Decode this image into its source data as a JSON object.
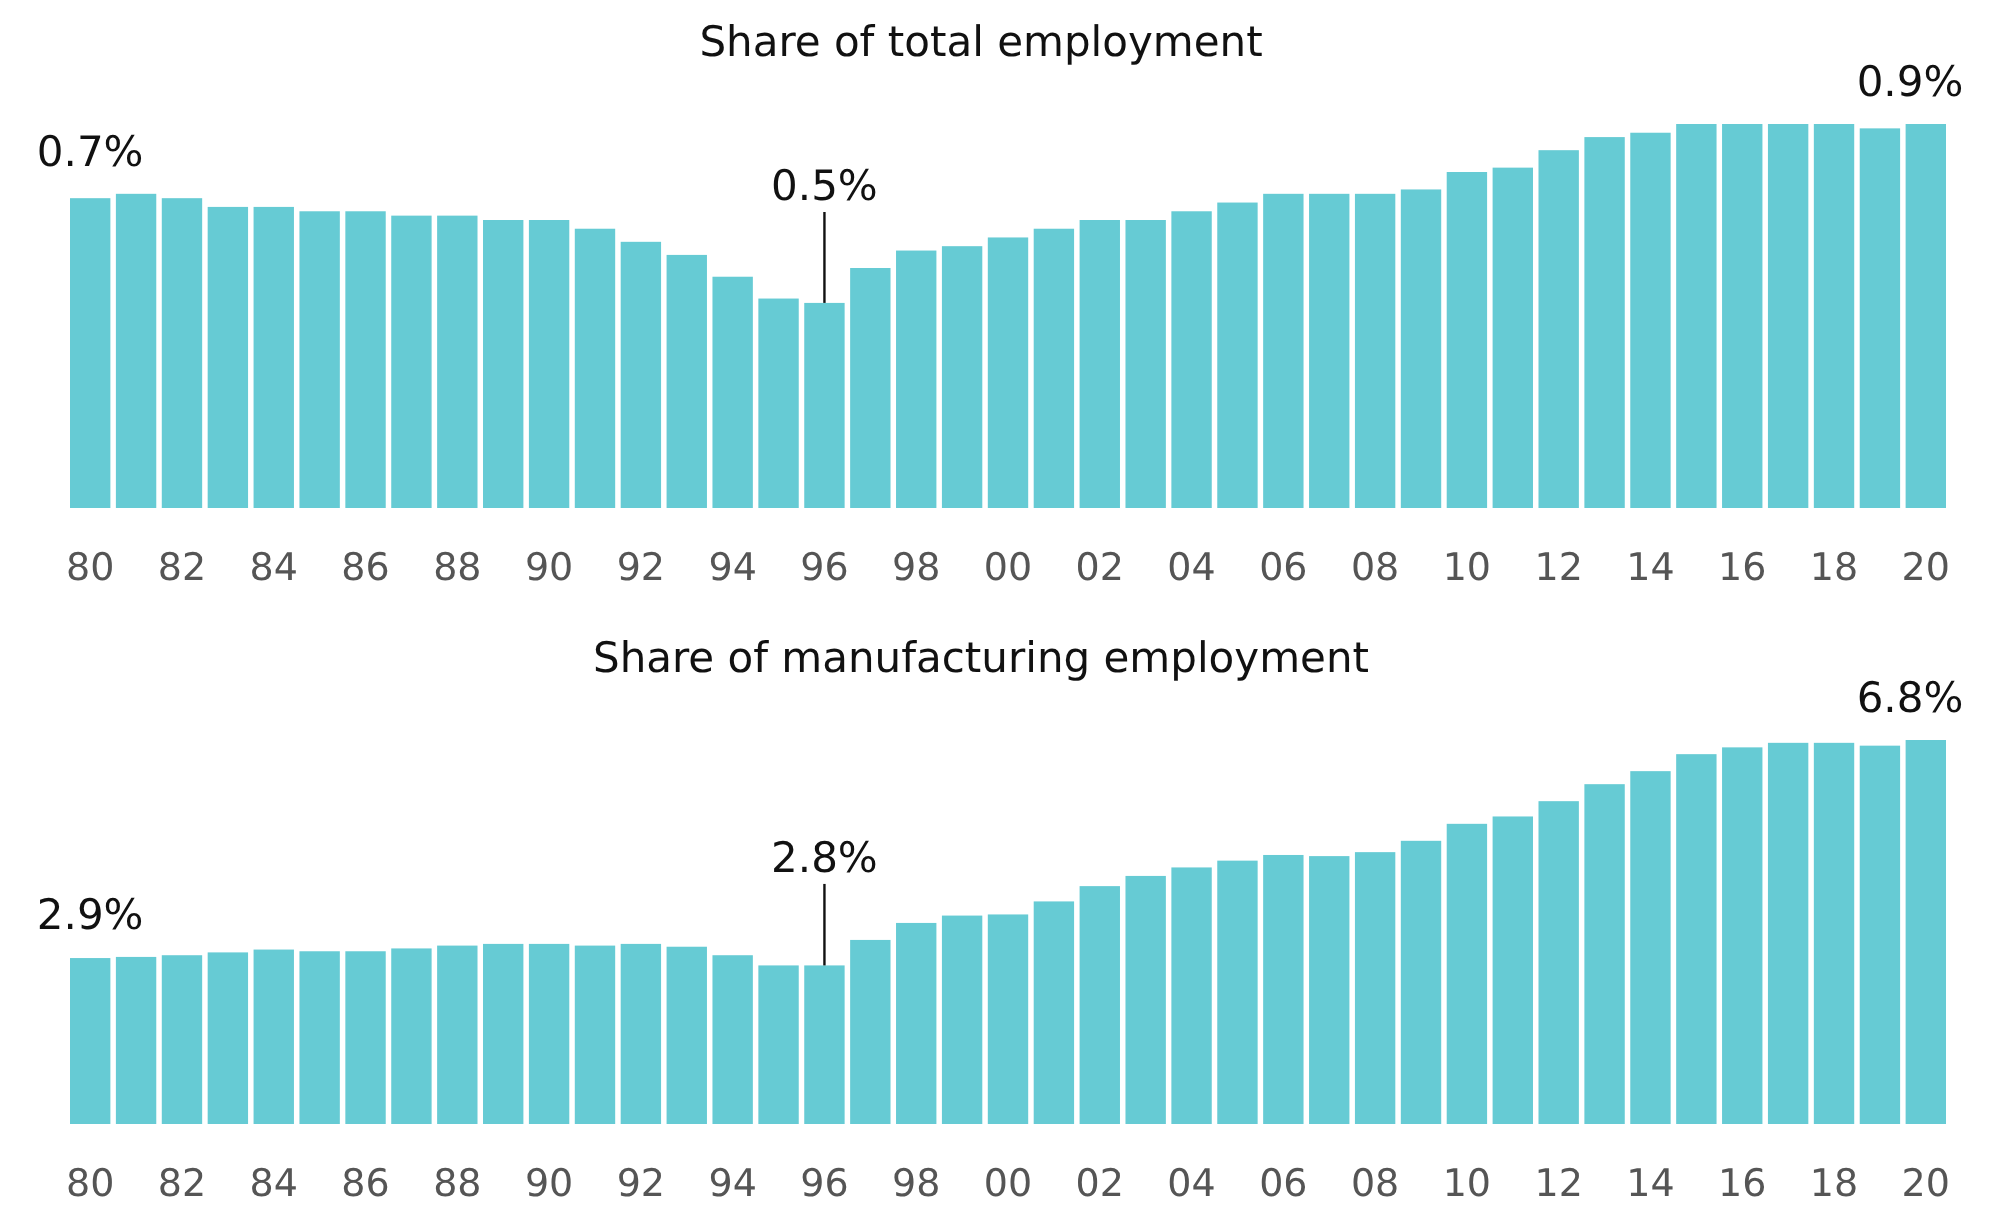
{
  "chart_data": [
    {
      "type": "bar",
      "title": "Share of total employment",
      "categories": [
        "80",
        null,
        "82",
        null,
        "84",
        null,
        "86",
        null,
        "88",
        null,
        "90",
        null,
        "92",
        null,
        "94",
        null,
        "96",
        null,
        "98",
        null,
        "00",
        null,
        "02",
        null,
        "04",
        null,
        "06",
        null,
        "08",
        null,
        "10",
        null,
        "12",
        null,
        "14",
        null,
        "16",
        null,
        "18",
        null,
        "20"
      ],
      "values": [
        0.71,
        0.72,
        0.71,
        0.69,
        0.69,
        0.68,
        0.68,
        0.67,
        0.67,
        0.66,
        0.66,
        0.64,
        0.61,
        0.58,
        0.53,
        0.48,
        0.47,
        0.55,
        0.59,
        0.6,
        0.62,
        0.64,
        0.66,
        0.66,
        0.68,
        0.7,
        0.72,
        0.72,
        0.72,
        0.73,
        0.77,
        0.78,
        0.82,
        0.85,
        0.86,
        0.88,
        0.88,
        0.88,
        0.88,
        0.87,
        0.88
      ],
      "value_labels": [
        "0.7%",
        null,
        null,
        null,
        null,
        null,
        null,
        null,
        null,
        null,
        null,
        null,
        null,
        null,
        null,
        null,
        "0.5%",
        null,
        null,
        null,
        null,
        null,
        null,
        null,
        null,
        null,
        null,
        null,
        null,
        null,
        null,
        null,
        null,
        null,
        null,
        null,
        null,
        null,
        null,
        null,
        "0.9%"
      ],
      "color": "#66cbd4",
      "grid": false
    },
    {
      "type": "bar",
      "title": "Share of manufacturing employment",
      "categories": [
        "80",
        null,
        "82",
        null,
        "84",
        null,
        "86",
        null,
        "88",
        null,
        "90",
        null,
        "92",
        null,
        "94",
        null,
        "96",
        null,
        "98",
        null,
        "00",
        null,
        "02",
        null,
        "04",
        null,
        "06",
        null,
        "08",
        null,
        "10",
        null,
        "12",
        null,
        "14",
        null,
        "16",
        null,
        "18",
        null,
        "20"
      ],
      "values": [
        2.93,
        2.95,
        2.98,
        3.03,
        3.08,
        3.05,
        3.05,
        3.1,
        3.15,
        3.18,
        3.18,
        3.15,
        3.18,
        3.13,
        2.98,
        2.8,
        2.8,
        3.25,
        3.55,
        3.68,
        3.7,
        3.93,
        4.2,
        4.38,
        4.53,
        4.65,
        4.75,
        4.73,
        4.8,
        5.0,
        5.3,
        5.43,
        5.7,
        6.0,
        6.23,
        6.53,
        6.65,
        6.73,
        6.73,
        6.68,
        6.78
      ],
      "value_labels": [
        "2.9%",
        null,
        null,
        null,
        null,
        null,
        null,
        null,
        null,
        null,
        null,
        null,
        null,
        null,
        null,
        null,
        "2.8%",
        null,
        null,
        null,
        null,
        null,
        null,
        null,
        null,
        null,
        null,
        null,
        null,
        null,
        null,
        null,
        null,
        null,
        null,
        null,
        null,
        null,
        null,
        null,
        "6.8%"
      ],
      "color": "#66cbd4",
      "grid": false
    }
  ]
}
